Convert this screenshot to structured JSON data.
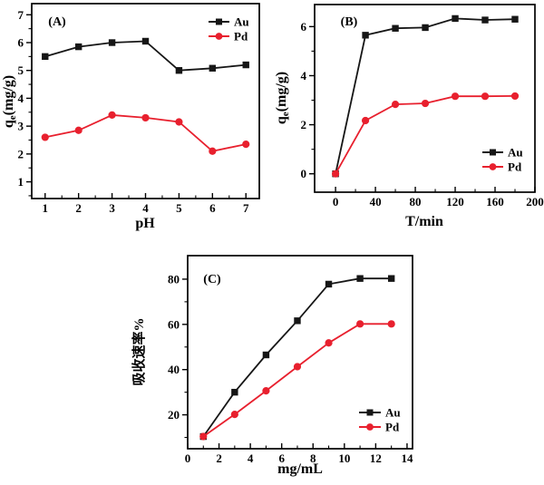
{
  "figure": {
    "background": "#ffffff",
    "axis_color": "#000000",
    "series_colors": {
      "Au": "#161616",
      "Pd": "#e8202e"
    }
  },
  "chart_data": [
    {
      "id": "A",
      "type": "line",
      "panel_label": "(A)",
      "xlabel": "pH",
      "ylabel": "qe(mg/g)",
      "ylabel_parts": {
        "pre": "q",
        "sub": "e",
        "post": "(mg/g)"
      },
      "xlim": [
        0.6,
        7.4
      ],
      "ylim": [
        0.4,
        7.4
      ],
      "xticks": [
        1,
        2,
        3,
        4,
        5,
        6,
        7
      ],
      "yticks": [
        1,
        2,
        3,
        4,
        5,
        6,
        7
      ],
      "x_minor_step": 0.5,
      "y_minor_step": 0.5,
      "grid": false,
      "legend_position": "top-right",
      "x": [
        1,
        2,
        3,
        4,
        5,
        6,
        7
      ],
      "series": [
        {
          "name": "Au",
          "color": "#161616",
          "marker": "square",
          "values": [
            5.5,
            5.85,
            6.0,
            6.05,
            5.0,
            5.08,
            5.2
          ]
        },
        {
          "name": "Pd",
          "color": "#e8202e",
          "marker": "circle",
          "values": [
            2.6,
            2.85,
            3.4,
            3.3,
            3.15,
            2.1,
            2.35
          ]
        }
      ]
    },
    {
      "id": "B",
      "type": "line",
      "panel_label": "(B)",
      "xlabel": "T/min",
      "ylabel": "qe(mg/g)",
      "ylabel_parts": {
        "pre": "q",
        "sub": "e",
        "post": "(mg/g)"
      },
      "xlim": [
        -21,
        200
      ],
      "ylim": [
        -0.75,
        6.9
      ],
      "xticks": [
        0,
        40,
        80,
        120,
        160,
        200
      ],
      "yticks": [
        0,
        2,
        4,
        6
      ],
      "x_minor_step": 20,
      "y_minor_step": 1,
      "grid": false,
      "legend_position": "right-lower",
      "x": [
        0,
        30,
        60,
        90,
        120,
        150,
        180
      ],
      "series": [
        {
          "name": "Au",
          "color": "#161616",
          "marker": "square",
          "values": [
            0,
            5.65,
            5.93,
            5.96,
            6.33,
            6.27,
            6.3
          ]
        },
        {
          "name": "Pd",
          "color": "#e8202e",
          "marker": "circle",
          "values": [
            0,
            2.17,
            2.83,
            2.87,
            3.16,
            3.16,
            3.17
          ]
        }
      ]
    },
    {
      "id": "C",
      "type": "line",
      "panel_label": "(C)",
      "xlabel": "mg/mL",
      "ylabel": "吸收速率%",
      "xlim": [
        0,
        14.35
      ],
      "ylim": [
        5,
        90.4
      ],
      "xticks": [
        0,
        2,
        4,
        6,
        8,
        10,
        12,
        14
      ],
      "yticks": [
        20,
        40,
        60,
        80
      ],
      "x_minor_step": 1,
      "y_minor_step": 10,
      "grid": false,
      "legend_position": "bottom-right",
      "x": [
        1,
        3,
        5,
        7,
        9,
        11,
        13
      ],
      "series": [
        {
          "name": "Au",
          "color": "#161616",
          "marker": "square",
          "values": [
            10.4,
            30,
            46.5,
            61.6,
            77.8,
            80.3,
            80.3
          ]
        },
        {
          "name": "Pd",
          "color": "#e8202e",
          "marker": "circle",
          "values": [
            10.4,
            20.2,
            30.6,
            41.3,
            51.8,
            60.2,
            60.2
          ]
        }
      ]
    }
  ]
}
